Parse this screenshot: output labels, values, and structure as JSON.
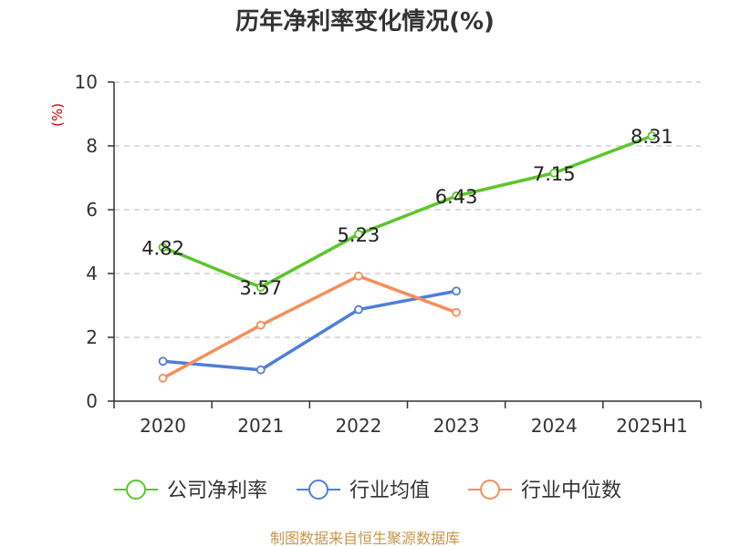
{
  "chart_data": {
    "type": "line",
    "title": "历年净利率变化情况(%)",
    "ylabel": "(%)",
    "categories": [
      "2020",
      "2021",
      "2022",
      "2023",
      "2024",
      "2025H1"
    ],
    "ylim": [
      0,
      10
    ],
    "yticks": [
      0,
      2,
      4,
      6,
      8,
      10
    ],
    "grid": true,
    "legend_position": "bottom",
    "series": [
      {
        "name": "公司净利率",
        "color": "#5cc52b",
        "values": [
          4.82,
          3.57,
          5.23,
          6.43,
          7.15,
          8.31
        ],
        "labels": [
          "4.82",
          "3.57",
          "5.23",
          "6.43",
          "7.15",
          "8.31"
        ]
      },
      {
        "name": "行业均值",
        "color": "#4f7ed6",
        "values": [
          1.25,
          0.98,
          2.87,
          3.45,
          null,
          null
        ]
      },
      {
        "name": "行业中位数",
        "color": "#f68e5a",
        "values": [
          0.72,
          2.38,
          3.92,
          2.78,
          null,
          null
        ]
      }
    ],
    "source": "制图数据来自恒生聚源数据库"
  }
}
